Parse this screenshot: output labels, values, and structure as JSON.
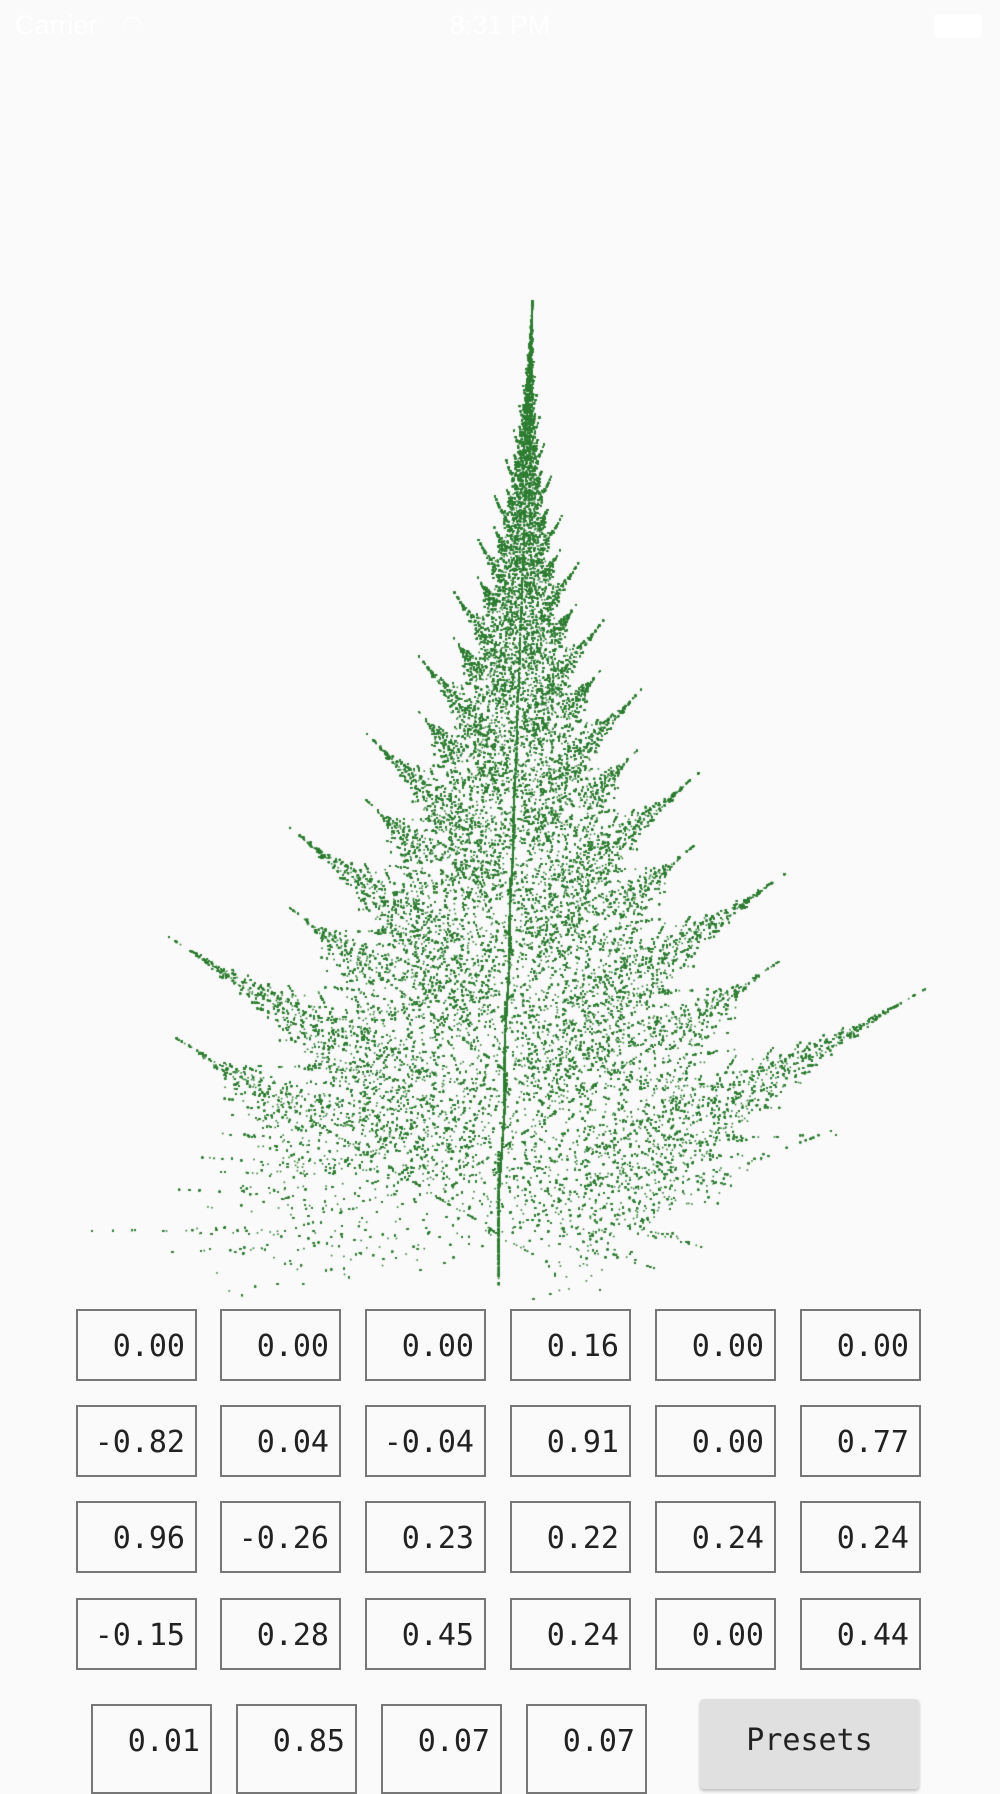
{
  "status_bar": {
    "carrier": "Carrier",
    "time": "8:31 PM",
    "wifi_icon": "wifi-icon",
    "battery_icon": "battery-icon"
  },
  "fern_color": "#2e7d32",
  "coefficients": [
    [
      "0.00",
      "0.00",
      "0.00",
      "0.16",
      "0.00",
      "0.00"
    ],
    [
      "-0.82",
      "0.04",
      "-0.04",
      "0.91",
      "0.00",
      "0.77"
    ],
    [
      "0.96",
      "-0.26",
      "0.23",
      "0.22",
      "0.24",
      "0.24"
    ],
    [
      "-0.15",
      "0.28",
      "0.45",
      "0.24",
      "0.00",
      "0.44"
    ]
  ],
  "probabilities": [
    "0.01",
    "0.85",
    "0.07",
    "0.07"
  ],
  "presets_label": "Presets"
}
